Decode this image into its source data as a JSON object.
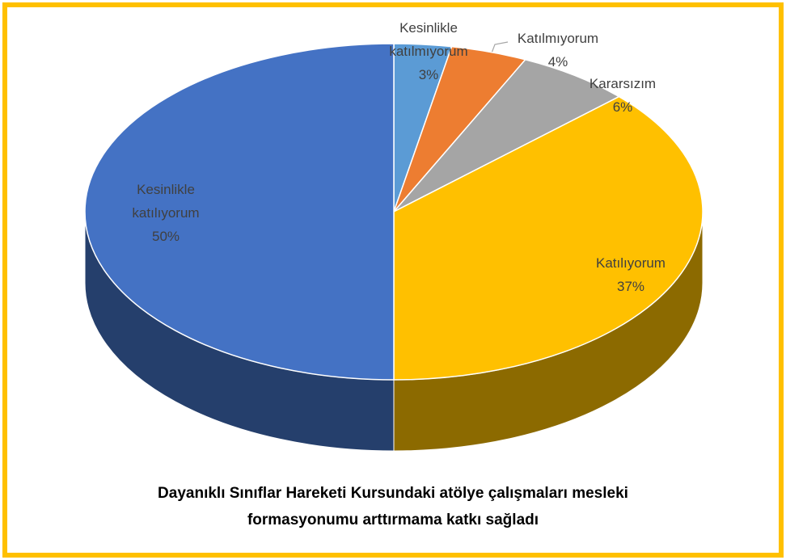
{
  "chart_data": {
    "type": "pie",
    "title": "Dayanıklı Sınıflar Hareketi Kursundaki atölye çalışmaları mesleki formasyonumu arttırmama katkı sağladı",
    "categories": [
      "Kesinlikle katılmıyorum",
      "Katılmıyorum",
      "Kararsızım",
      "Katılıyorum",
      "Kesinlikle katılıyorum"
    ],
    "values": [
      3,
      4,
      6,
      37,
      50
    ],
    "value_labels": [
      "3%",
      "4%",
      "6%",
      "37%",
      "50%"
    ],
    "colors": [
      "#5b9bd5",
      "#ed7d31",
      "#a5a5a5",
      "#ffc000",
      "#4472c4"
    ]
  }
}
